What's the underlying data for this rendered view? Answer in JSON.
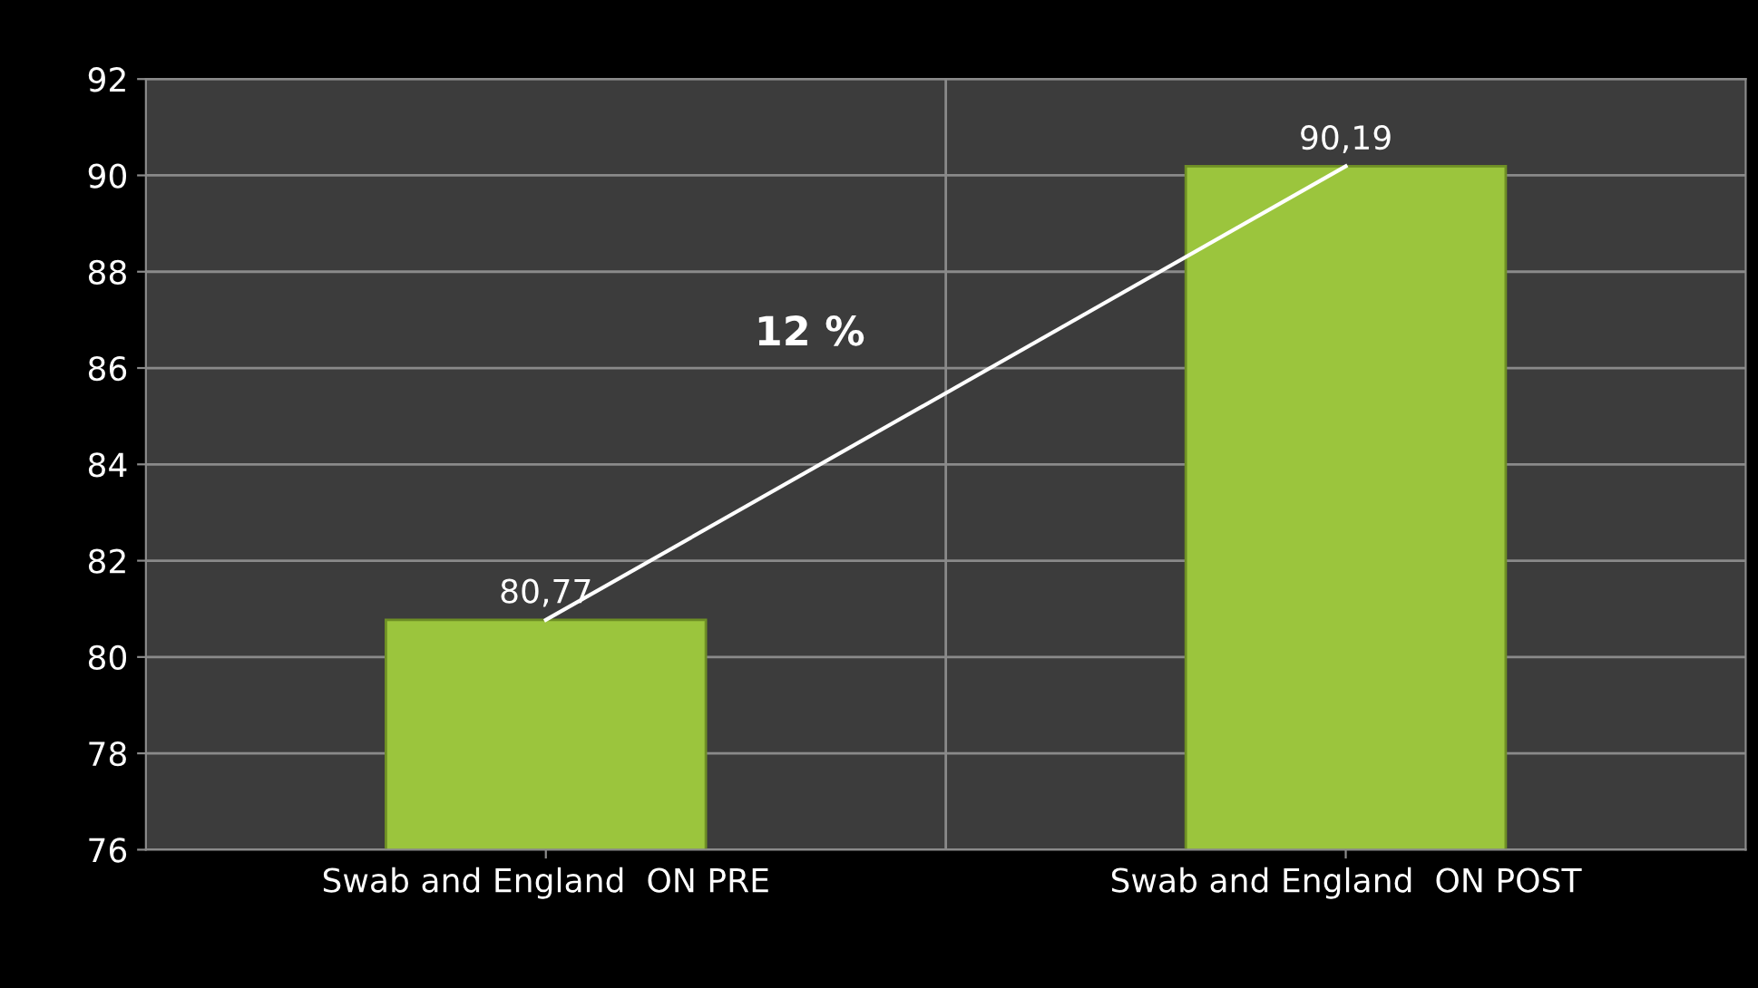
{
  "chart_data": {
    "type": "bar",
    "categories": [
      "Swab and England  ON PRE",
      "Swab and England  ON POST"
    ],
    "series": [
      {
        "color": "#9bc53d",
        "values": [
          80.77,
          90.19
        ],
        "value_labels": [
          "80,77",
          "90,19"
        ]
      },
      {
        "type": "line",
        "color": "#ffffff",
        "values": [
          80.77,
          90.19
        ]
      }
    ],
    "ylim": [
      76,
      92
    ],
    "yticks": [
      76,
      78,
      80,
      82,
      84,
      86,
      88,
      90,
      92
    ],
    "grid": true,
    "marker": "none",
    "annotations": [
      "12 %"
    ]
  }
}
